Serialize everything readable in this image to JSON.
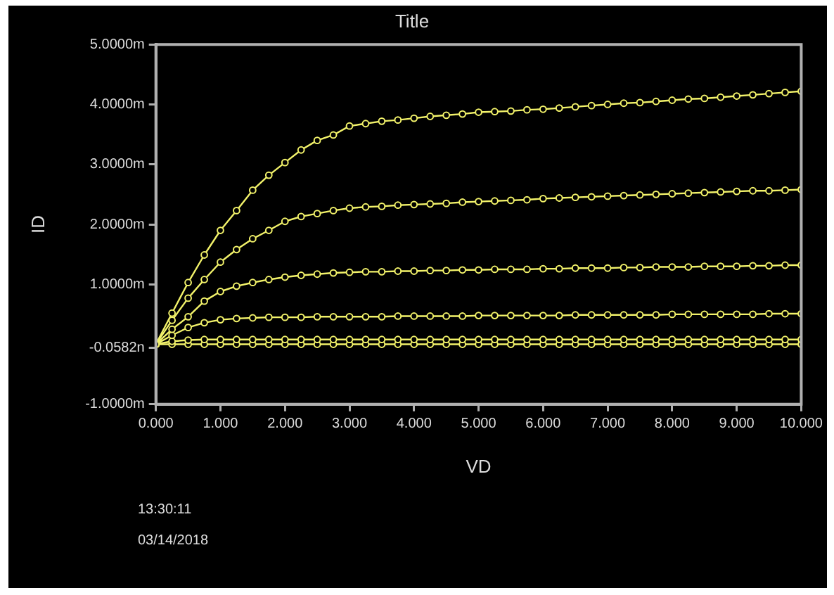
{
  "chart_data": {
    "type": "line",
    "title": "Title",
    "xlabel": "VD",
    "ylabel": "ID",
    "marker": "circle",
    "line_style": "solid",
    "x": [
      0,
      0.25,
      0.5,
      0.75,
      1,
      1.25,
      1.5,
      1.75,
      2,
      2.25,
      2.5,
      2.75,
      3,
      3.25,
      3.5,
      3.75,
      4,
      4.25,
      4.5,
      4.75,
      5,
      5.25,
      5.5,
      5.75,
      6,
      6.25,
      6.5,
      6.75,
      7,
      7.25,
      7.5,
      7.75,
      8,
      8.25,
      8.5,
      8.75,
      9,
      9.25,
      9.5,
      9.75,
      10
    ],
    "xlim": [
      0,
      10
    ],
    "xticks": [
      {
        "value": 0,
        "label": "0.000"
      },
      {
        "value": 1,
        "label": "1.000"
      },
      {
        "value": 2,
        "label": "2.000"
      },
      {
        "value": 3,
        "label": "3.000"
      },
      {
        "value": 4,
        "label": "4.000"
      },
      {
        "value": 5,
        "label": "5.000"
      },
      {
        "value": 6,
        "label": "6.000"
      },
      {
        "value": 7,
        "label": "7.000"
      },
      {
        "value": 8,
        "label": "8.000"
      },
      {
        "value": 9,
        "label": "9.000"
      },
      {
        "value": 10,
        "label": "10.000"
      }
    ],
    "ylim": [
      -1,
      5
    ],
    "yticks": [
      {
        "value": -1,
        "label": "-1.0000m"
      },
      {
        "value": -0.0582,
        "label": "-0.0582n"
      },
      {
        "value": 1,
        "label": "1.0000m"
      },
      {
        "value": 2,
        "label": "2.0000m"
      },
      {
        "value": 3,
        "label": "3.0000m"
      },
      {
        "value": 4,
        "label": "4.0000m"
      },
      {
        "value": 5,
        "label": "5.0000m"
      }
    ],
    "series": [
      {
        "color": "#f2f26a",
        "values": [
          0,
          0.52,
          1.03,
          1.49,
          1.9,
          2.23,
          2.57,
          2.82,
          3.03,
          3.24,
          3.4,
          3.49,
          3.64,
          3.68,
          3.72,
          3.74,
          3.77,
          3.8,
          3.82,
          3.84,
          3.87,
          3.88,
          3.89,
          3.91,
          3.92,
          3.94,
          3.96,
          3.98,
          4,
          4.02,
          4.03,
          4.05,
          4.07,
          4.09,
          4.1,
          4.12,
          4.14,
          4.16,
          4.18,
          4.2,
          4.22
        ]
      },
      {
        "color": "#f2f26a",
        "values": [
          0,
          0.4,
          0.77,
          1.08,
          1.37,
          1.58,
          1.76,
          1.9,
          2.05,
          2.13,
          2.18,
          2.23,
          2.27,
          2.29,
          2.3,
          2.32,
          2.33,
          2.34,
          2.35,
          2.37,
          2.38,
          2.39,
          2.4,
          2.41,
          2.43,
          2.44,
          2.45,
          2.46,
          2.47,
          2.48,
          2.49,
          2.5,
          2.51,
          2.52,
          2.53,
          2.54,
          2.55,
          2.56,
          2.56,
          2.57,
          2.58
        ]
      },
      {
        "color": "#f2f26a",
        "values": [
          0,
          0.25,
          0.46,
          0.72,
          0.88,
          0.97,
          1.03,
          1.08,
          1.12,
          1.15,
          1.17,
          1.19,
          1.2,
          1.21,
          1.21,
          1.22,
          1.22,
          1.23,
          1.23,
          1.24,
          1.24,
          1.25,
          1.25,
          1.25,
          1.26,
          1.26,
          1.27,
          1.27,
          1.27,
          1.28,
          1.28,
          1.29,
          1.29,
          1.29,
          1.3,
          1.3,
          1.3,
          1.31,
          1.31,
          1.32,
          1.32
        ]
      },
      {
        "color": "#f2f26a",
        "values": [
          0,
          0.15,
          0.28,
          0.36,
          0.41,
          0.43,
          0.44,
          0.45,
          0.45,
          0.45,
          0.46,
          0.46,
          0.46,
          0.46,
          0.46,
          0.47,
          0.47,
          0.47,
          0.47,
          0.47,
          0.48,
          0.48,
          0.48,
          0.48,
          0.48,
          0.48,
          0.49,
          0.49,
          0.49,
          0.49,
          0.49,
          0.49,
          0.5,
          0.5,
          0.5,
          0.5,
          0.5,
          0.5,
          0.51,
          0.51,
          0.51
        ]
      },
      {
        "color": "#f2f26a",
        "values": [
          0,
          0.05,
          0.07,
          0.08,
          0.08,
          0.08,
          0.08,
          0.08,
          0.08,
          0.08,
          0.08,
          0.08,
          0.08,
          0.08,
          0.08,
          0.08,
          0.08,
          0.08,
          0.08,
          0.08,
          0.08,
          0.08,
          0.08,
          0.08,
          0.08,
          0.08,
          0.08,
          0.08,
          0.08,
          0.08,
          0.08,
          0.08,
          0.08,
          0.08,
          0.08,
          0.08,
          0.08,
          0.08,
          0.08,
          0.08,
          0.08
        ]
      },
      {
        "color": "#f2f26a",
        "values": [
          0,
          0,
          0,
          0,
          0,
          0,
          0,
          0,
          0,
          0,
          0,
          0,
          0,
          0,
          0,
          0,
          0,
          0,
          0,
          0,
          0,
          0,
          0,
          0,
          0,
          0,
          0,
          0,
          0,
          0,
          0,
          0,
          0,
          0,
          0,
          0,
          0,
          0,
          0,
          0,
          0
        ]
      }
    ],
    "annotations": [
      "13:30:11",
      "03/14/2018"
    ]
  }
}
